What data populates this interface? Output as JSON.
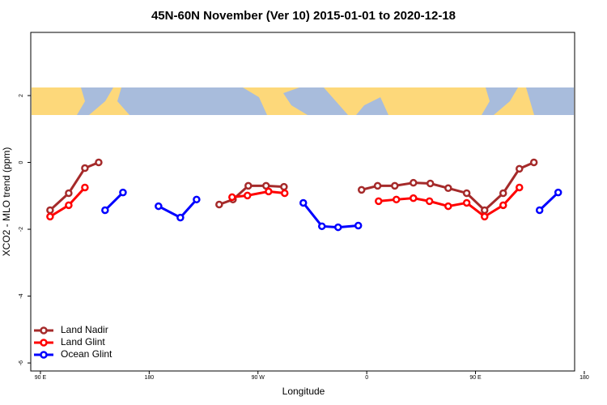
{
  "chart_data": {
    "type": "line",
    "title": "45N-60N November (Ver 10)   2015-01-01 to 2020-12-18",
    "x_label": "Longitude",
    "y_label": "XCO2 - MLO trend (ppm)",
    "xlim": [
      82,
      532
    ],
    "ylim": [
      -6.24,
      3.89
    ],
    "xticks": [
      {
        "value": 90,
        "label": "90 E"
      },
      {
        "value": 180,
        "label": "180"
      },
      {
        "value": 270,
        "label": "90 W"
      },
      {
        "value": 360,
        "label": "0"
      },
      {
        "value": 450,
        "label": "90 E"
      },
      {
        "value": 540,
        "label": "180"
      }
    ],
    "yticks": [
      2,
      0,
      -2,
      -4,
      -6
    ],
    "legend": "bottom-left",
    "series": [
      {
        "name": "Land Nadir",
        "color": "#a52a2a",
        "x": [
          98,
          113.4,
          126.8,
          138.2,
          200,
          237.9,
          249.3,
          262,
          276.7,
          291.5,
          320,
          355.7,
          369,
          383.2,
          398.6,
          412.6,
          427.4,
          442.7,
          457.5,
          472.9,
          486.3,
          498.3
        ],
        "values": [
          -1.43,
          -0.92,
          -0.17,
          0,
          null,
          -1.26,
          -1.11,
          -0.7,
          -0.7,
          -0.73,
          null,
          -0.82,
          -0.7,
          -0.7,
          -0.61,
          -0.63,
          -0.77,
          -0.92,
          -1.43,
          -0.92,
          -0.19,
          0
        ]
      },
      {
        "name": "Land Glint",
        "color": "#ff0000",
        "x": [
          98,
          113.4,
          126.8,
          200,
          248.6,
          261.3,
          278.8,
          292.1,
          330,
          369.8,
          384.5,
          398.6,
          411.9,
          427.4,
          442.7,
          457.5,
          472.9,
          486.3
        ],
        "values": [
          -1.62,
          -1.28,
          -0.75,
          null,
          -1.04,
          -0.99,
          -0.87,
          -0.92,
          null,
          -1.16,
          -1.11,
          -1.07,
          -1.16,
          -1.31,
          -1.21,
          -1.62,
          -1.28,
          -0.75
        ]
      },
      {
        "name": "Ocean Glint",
        "color": "#0000ff",
        "x": [
          143.5,
          158.3,
          170,
          187.7,
          205.8,
          219.2,
          260,
          307.5,
          322.9,
          336.3,
          353,
          480,
          503,
          518.4
        ],
        "values": [
          -1.43,
          -0.9,
          null,
          -1.31,
          -1.65,
          -1.11,
          null,
          -1.21,
          -1.91,
          -1.94,
          -1.89,
          null,
          -1.43,
          -0.9
        ]
      }
    ]
  }
}
